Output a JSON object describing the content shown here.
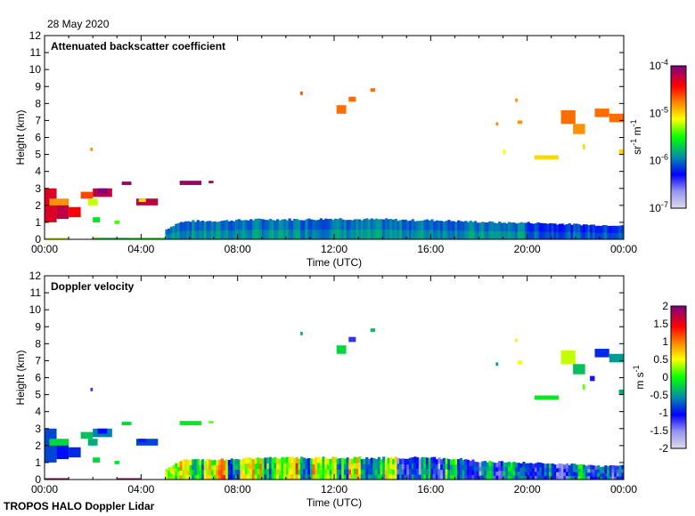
{
  "header": {
    "date": "28 May 2020",
    "footer": "TROPOS HALO Doppler Lidar"
  },
  "chart_data": [
    {
      "type": "heatmap",
      "title": "Attenuated backscatter coefficient",
      "xlabel": "Time (UTC)",
      "ylabel": "Height (km)",
      "xlim": [
        0,
        24
      ],
      "ylim": [
        0,
        12
      ],
      "xticks": [
        "00:00",
        "04:00",
        "08:00",
        "12:00",
        "16:00",
        "20:00",
        "00:00"
      ],
      "yticks": [
        "0",
        "1",
        "2",
        "3",
        "4",
        "5",
        "6",
        "7",
        "8",
        "9",
        "10",
        "11",
        "12"
      ],
      "colorbar": {
        "label_base": "sr",
        "label_exp1": "-1",
        "label_unit2": " m",
        "label_exp2": "-1",
        "scale": "log",
        "range": [
          1e-07,
          0.0001
        ],
        "ticks": [
          {
            "base": "10",
            "exp": "-4"
          },
          {
            "base": "10",
            "exp": "-5"
          },
          {
            "base": "10",
            "exp": "-6"
          },
          {
            "base": "10",
            "exp": "-7"
          }
        ]
      },
      "regions_note": "value = log10(beta) in sr-1 m-1; [t0_h, t1_h, h0_km, h1_km, value]",
      "regions": [
        [
          0.0,
          0.5,
          1.0,
          3.0,
          -4.3
        ],
        [
          0.5,
          1.0,
          1.2,
          2.2,
          -4.2
        ],
        [
          1.0,
          1.5,
          1.3,
          1.9,
          -4.4
        ],
        [
          0.2,
          1.0,
          2.0,
          2.4,
          -4.8
        ],
        [
          1.5,
          2.0,
          2.4,
          2.8,
          -4.6
        ],
        [
          2.0,
          2.8,
          2.5,
          3.0,
          -4.2
        ],
        [
          2.2,
          2.6,
          2.7,
          3.0,
          -4.0
        ],
        [
          1.8,
          2.2,
          2.0,
          2.4,
          -5.2
        ],
        [
          2.0,
          2.3,
          1.0,
          1.3,
          -5.6
        ],
        [
          2.9,
          3.1,
          0.9,
          1.1,
          -5.4
        ],
        [
          3.2,
          3.6,
          3.2,
          3.4,
          -4.1
        ],
        [
          3.8,
          4.7,
          2.0,
          2.4,
          -4.2
        ],
        [
          3.9,
          4.2,
          2.2,
          2.4,
          -5.0
        ],
        [
          5.6,
          6.5,
          3.2,
          3.45,
          -4.1
        ],
        [
          6.8,
          7.0,
          3.3,
          3.45,
          -4.2
        ],
        [
          1.9,
          2.0,
          5.2,
          5.4,
          -4.8
        ],
        [
          10.6,
          10.7,
          8.5,
          8.7,
          -4.6
        ],
        [
          12.1,
          12.5,
          7.4,
          7.9,
          -4.7
        ],
        [
          12.6,
          12.9,
          8.1,
          8.4,
          -4.7
        ],
        [
          13.5,
          13.7,
          8.7,
          8.9,
          -4.7
        ],
        [
          18.7,
          18.8,
          6.7,
          6.9,
          -4.8
        ],
        [
          19.5,
          19.6,
          8.1,
          8.3,
          -4.8
        ],
        [
          19.6,
          19.8,
          6.8,
          7.0,
          -4.8
        ],
        [
          20.3,
          21.3,
          4.7,
          4.95,
          -5.0
        ],
        [
          21.4,
          22.0,
          6.8,
          7.6,
          -4.7
        ],
        [
          21.9,
          22.4,
          6.2,
          6.8,
          -4.8
        ],
        [
          22.8,
          23.4,
          7.2,
          7.7,
          -4.7
        ],
        [
          23.4,
          24.0,
          6.9,
          7.4,
          -4.7
        ],
        [
          23.8,
          24.0,
          5.0,
          5.3,
          -5.0
        ],
        [
          19.0,
          19.1,
          5.0,
          5.3,
          -5.1
        ],
        [
          22.3,
          22.4,
          5.3,
          5.6,
          -5.0
        ]
      ],
      "boundary_layer": {
        "note": "[t_h, top_km] every 0.5 h with value log10(beta)",
        "value": -5.9,
        "profile": [
          [
            5.0,
            0.6
          ],
          [
            5.5,
            1.0
          ],
          [
            6,
            1.1
          ],
          [
            7,
            1.1
          ],
          [
            8,
            1.15
          ],
          [
            9,
            1.2
          ],
          [
            10,
            1.2
          ],
          [
            11,
            1.2
          ],
          [
            12,
            1.25
          ],
          [
            13,
            1.2
          ],
          [
            14,
            1.2
          ],
          [
            15,
            1.15
          ],
          [
            16,
            1.15
          ],
          [
            17,
            1.1
          ],
          [
            18,
            1.05
          ],
          [
            19,
            1.0
          ],
          [
            20,
            1.0
          ],
          [
            21,
            0.95
          ],
          [
            22,
            0.9
          ],
          [
            23,
            0.85
          ],
          [
            24,
            0.85
          ]
        ]
      },
      "surface_layer": [
        [
          0.0,
          1.0,
          0.0,
          0.1,
          -5.2
        ],
        [
          2.0,
          3.5,
          0.0,
          0.1,
          -5.6
        ],
        [
          3.5,
          5.0,
          0.0,
          0.1,
          -5.5
        ]
      ]
    },
    {
      "type": "heatmap",
      "title": "Doppler velocity",
      "xlabel": "Time (UTC)",
      "ylabel": "Height (km)",
      "xlim": [
        0,
        24
      ],
      "ylim": [
        0,
        12
      ],
      "xticks": [
        "00:00",
        "04:00",
        "08:00",
        "12:00",
        "16:00",
        "20:00",
        "00:00"
      ],
      "yticks": [
        "0",
        "1",
        "2",
        "3",
        "4",
        "5",
        "6",
        "7",
        "8",
        "9",
        "10",
        "11",
        "12"
      ],
      "colorbar": {
        "label_base": "m s",
        "label_exp1": "-1",
        "range": [
          -2,
          2
        ],
        "ticks": [
          "2",
          "1.5",
          "1",
          "0.5",
          "0",
          "-0.5",
          "-1",
          "-1.5",
          "-2"
        ]
      },
      "regions_note": "value = Doppler velocity in m s-1; [t0_h, t1_h, h0_km, h1_km, value]",
      "regions": [
        [
          0.0,
          0.5,
          1.0,
          3.0,
          -0.8
        ],
        [
          0.5,
          1.0,
          1.2,
          2.2,
          -1.0
        ],
        [
          1.0,
          1.5,
          1.3,
          1.9,
          -0.9
        ],
        [
          0.2,
          1.0,
          2.0,
          2.4,
          -0.2
        ],
        [
          1.5,
          2.0,
          2.4,
          2.8,
          -0.3
        ],
        [
          2.0,
          2.8,
          2.5,
          3.0,
          -0.6
        ],
        [
          2.2,
          2.6,
          2.7,
          3.0,
          -1.0
        ],
        [
          1.8,
          2.2,
          2.0,
          2.4,
          -0.4
        ],
        [
          2.0,
          2.3,
          1.0,
          1.3,
          -0.2
        ],
        [
          2.9,
          3.1,
          0.9,
          1.1,
          -0.1
        ],
        [
          3.2,
          3.6,
          3.2,
          3.4,
          -0.2
        ],
        [
          3.8,
          4.7,
          2.0,
          2.4,
          -0.8
        ],
        [
          3.9,
          4.2,
          2.2,
          2.4,
          -1.1
        ],
        [
          5.6,
          6.5,
          3.2,
          3.45,
          -0.1
        ],
        [
          6.8,
          7.0,
          3.3,
          3.45,
          0.2
        ],
        [
          1.9,
          2.0,
          5.2,
          5.4,
          -1.2
        ],
        [
          10.6,
          10.7,
          8.5,
          8.7,
          -0.4
        ],
        [
          12.1,
          12.5,
          7.4,
          7.9,
          -0.2
        ],
        [
          12.6,
          12.9,
          8.1,
          8.4,
          -1.2
        ],
        [
          13.5,
          13.7,
          8.7,
          8.9,
          -0.3
        ],
        [
          18.7,
          18.8,
          6.7,
          6.9,
          -0.5
        ],
        [
          19.5,
          19.6,
          8.1,
          8.3,
          0.6
        ],
        [
          19.6,
          19.8,
          6.8,
          7.0,
          0.5
        ],
        [
          20.3,
          21.3,
          4.7,
          4.95,
          -0.1
        ],
        [
          21.4,
          22.0,
          6.8,
          7.6,
          0.4
        ],
        [
          21.9,
          22.4,
          6.2,
          6.8,
          -0.3
        ],
        [
          22.8,
          23.4,
          7.2,
          7.7,
          -0.9
        ],
        [
          23.4,
          24.0,
          6.9,
          7.4,
          -0.5
        ],
        [
          23.8,
          24.0,
          5.0,
          5.3,
          -0.4
        ],
        [
          22.3,
          22.4,
          5.3,
          5.6,
          0.2
        ],
        [
          22.6,
          22.8,
          5.8,
          6.1,
          -1.1
        ]
      ],
      "boundary_layer": {
        "note": "[t_h, top_km] profile; velocities every 0.5 h from 5.0 h",
        "profile": [
          [
            5.0,
            0.6
          ],
          [
            5.5,
            1.1
          ],
          [
            6,
            1.2
          ],
          [
            7,
            1.2
          ],
          [
            8,
            1.25
          ],
          [
            9,
            1.3
          ],
          [
            10,
            1.3
          ],
          [
            11,
            1.3
          ],
          [
            12,
            1.3
          ],
          [
            13,
            1.3
          ],
          [
            14,
            1.3
          ],
          [
            15,
            1.3
          ],
          [
            16,
            1.3
          ],
          [
            17,
            1.25
          ],
          [
            18,
            1.1
          ],
          [
            19,
            1.05
          ],
          [
            20,
            1.0
          ],
          [
            21,
            0.95
          ],
          [
            22,
            0.9
          ],
          [
            23,
            0.8
          ],
          [
            24,
            0.85
          ]
        ],
        "velocities": [
          0.3,
          0.6,
          -0.2,
          0.4,
          0.8,
          -0.5,
          0.2,
          0.6,
          -0.3,
          0.1,
          0.7,
          -0.6,
          0.4,
          0.2,
          -0.4,
          0.5,
          -0.8,
          -0.2,
          0.3,
          -0.9,
          -1.0,
          -0.5,
          -1.1,
          -0.3,
          -0.6,
          -1.2,
          -0.4,
          -0.9,
          -0.2,
          -0.7,
          -1.0,
          -0.5,
          -1.3,
          -0.8,
          -0.4,
          -1.0,
          -0.6,
          -1.1
        ]
      },
      "surface_layer": [
        [
          0.0,
          1.0,
          0.0,
          0.08,
          1.9
        ],
        [
          3.0,
          4.0,
          0.0,
          0.08,
          1.9
        ]
      ]
    }
  ]
}
